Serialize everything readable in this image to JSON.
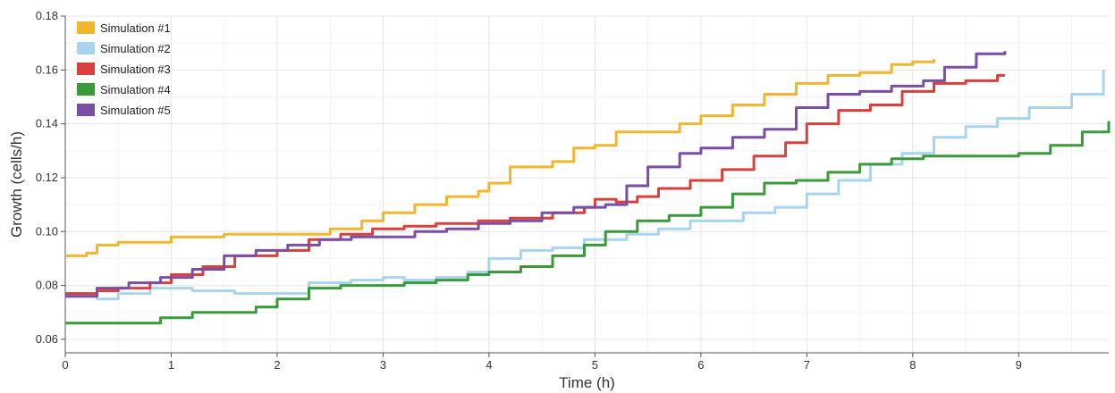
{
  "chart_data": {
    "type": "line",
    "xlabel": "Time (h)",
    "ylabel": "Growth (cells/h)",
    "xlim": [
      0,
      9.85
    ],
    "ylim": [
      0.055,
      0.18
    ],
    "x_ticks": [
      0,
      1,
      2,
      3,
      4,
      5,
      6,
      7,
      8,
      9
    ],
    "y_ticks": [
      0.06,
      0.08,
      0.1,
      0.12,
      0.14,
      0.16,
      0.18
    ],
    "y_tick_labels": [
      "0.06",
      "0.08",
      "0.10",
      "0.12",
      "0.14",
      "0.16",
      "0.18"
    ],
    "grid": true,
    "legend_position": "top-left",
    "series": [
      {
        "name": "Simulation #1",
        "color": "#f0b62e",
        "x": [
          0,
          0.2,
          0.3,
          0.5,
          0.8,
          1.0,
          1.5,
          2.0,
          2.2,
          2.5,
          2.8,
          3.0,
          3.3,
          3.6,
          3.9,
          4.0,
          4.2,
          4.6,
          4.8,
          5.0,
          5.2,
          5.5,
          5.8,
          6.0,
          6.3,
          6.6,
          6.9,
          7.2,
          7.5,
          7.8,
          8.0,
          8.2
        ],
        "y": [
          0.091,
          0.092,
          0.095,
          0.096,
          0.096,
          0.098,
          0.099,
          0.099,
          0.099,
          0.101,
          0.104,
          0.107,
          0.11,
          0.113,
          0.115,
          0.118,
          0.124,
          0.126,
          0.131,
          0.132,
          0.137,
          0.137,
          0.14,
          0.143,
          0.147,
          0.151,
          0.155,
          0.158,
          0.159,
          0.162,
          0.163,
          0.164
        ]
      },
      {
        "name": "Simulation #2",
        "color": "#a8d4ee",
        "x": [
          0,
          0.3,
          0.5,
          0.8,
          1.2,
          1.6,
          2.0,
          2.3,
          2.7,
          3.0,
          3.2,
          3.5,
          3.8,
          4.0,
          4.3,
          4.6,
          4.9,
          5.0,
          5.3,
          5.6,
          5.9,
          6.1,
          6.4,
          6.7,
          7.0,
          7.3,
          7.6,
          7.9,
          8.2,
          8.5,
          8.8,
          9.1,
          9.5,
          9.8
        ],
        "y": [
          0.076,
          0.075,
          0.077,
          0.079,
          0.078,
          0.077,
          0.077,
          0.081,
          0.082,
          0.083,
          0.082,
          0.083,
          0.085,
          0.09,
          0.093,
          0.094,
          0.097,
          0.097,
          0.099,
          0.101,
          0.104,
          0.104,
          0.107,
          0.109,
          0.114,
          0.119,
          0.125,
          0.129,
          0.135,
          0.139,
          0.142,
          0.146,
          0.151,
          0.16
        ]
      },
      {
        "name": "Simulation #3",
        "color": "#d9403b",
        "x": [
          0,
          0.3,
          0.5,
          0.8,
          1.0,
          1.3,
          1.6,
          2.0,
          2.3,
          2.6,
          2.9,
          3.2,
          3.5,
          3.9,
          4.2,
          4.6,
          4.9,
          5.0,
          5.2,
          5.4,
          5.6,
          5.9,
          6.2,
          6.5,
          6.8,
          7.0,
          7.3,
          7.6,
          7.9,
          8.2,
          8.5,
          8.8,
          8.87
        ],
        "y": [
          0.077,
          0.078,
          0.079,
          0.081,
          0.084,
          0.087,
          0.091,
          0.093,
          0.097,
          0.099,
          0.101,
          0.102,
          0.103,
          0.104,
          0.105,
          0.107,
          0.109,
          0.112,
          0.111,
          0.113,
          0.116,
          0.119,
          0.123,
          0.128,
          0.133,
          0.14,
          0.145,
          0.147,
          0.152,
          0.155,
          0.156,
          0.158,
          0.158
        ]
      },
      {
        "name": "Simulation #4",
        "color": "#3a9a3a",
        "x": [
          0,
          0.3,
          0.6,
          0.9,
          1.2,
          1.5,
          1.8,
          2.0,
          2.3,
          2.6,
          2.9,
          3.2,
          3.5,
          3.8,
          4.0,
          4.3,
          4.6,
          4.9,
          5.1,
          5.4,
          5.7,
          6.0,
          6.3,
          6.6,
          6.9,
          7.2,
          7.5,
          7.8,
          8.1,
          8.4,
          8.7,
          9.0,
          9.3,
          9.6,
          9.85
        ],
        "y": [
          0.066,
          0.066,
          0.066,
          0.068,
          0.07,
          0.07,
          0.072,
          0.075,
          0.079,
          0.08,
          0.08,
          0.081,
          0.082,
          0.084,
          0.085,
          0.087,
          0.091,
          0.095,
          0.1,
          0.104,
          0.106,
          0.109,
          0.114,
          0.118,
          0.119,
          0.122,
          0.125,
          0.127,
          0.128,
          0.128,
          0.128,
          0.129,
          0.132,
          0.137,
          0.141
        ]
      },
      {
        "name": "Simulation #5",
        "color": "#7b4ea6",
        "x": [
          0,
          0.3,
          0.6,
          0.9,
          1.2,
          1.5,
          1.8,
          2.1,
          2.4,
          2.7,
          3.0,
          3.3,
          3.6,
          3.9,
          4.2,
          4.5,
          4.8,
          5.1,
          5.3,
          5.5,
          5.8,
          6.0,
          6.3,
          6.6,
          6.9,
          7.2,
          7.5,
          7.8,
          8.1,
          8.3,
          8.6,
          8.87
        ],
        "y": [
          0.076,
          0.079,
          0.081,
          0.083,
          0.086,
          0.091,
          0.093,
          0.095,
          0.097,
          0.098,
          0.098,
          0.1,
          0.101,
          0.103,
          0.104,
          0.107,
          0.109,
          0.11,
          0.117,
          0.124,
          0.129,
          0.131,
          0.135,
          0.138,
          0.146,
          0.151,
          0.152,
          0.154,
          0.156,
          0.161,
          0.166,
          0.167
        ]
      }
    ]
  }
}
